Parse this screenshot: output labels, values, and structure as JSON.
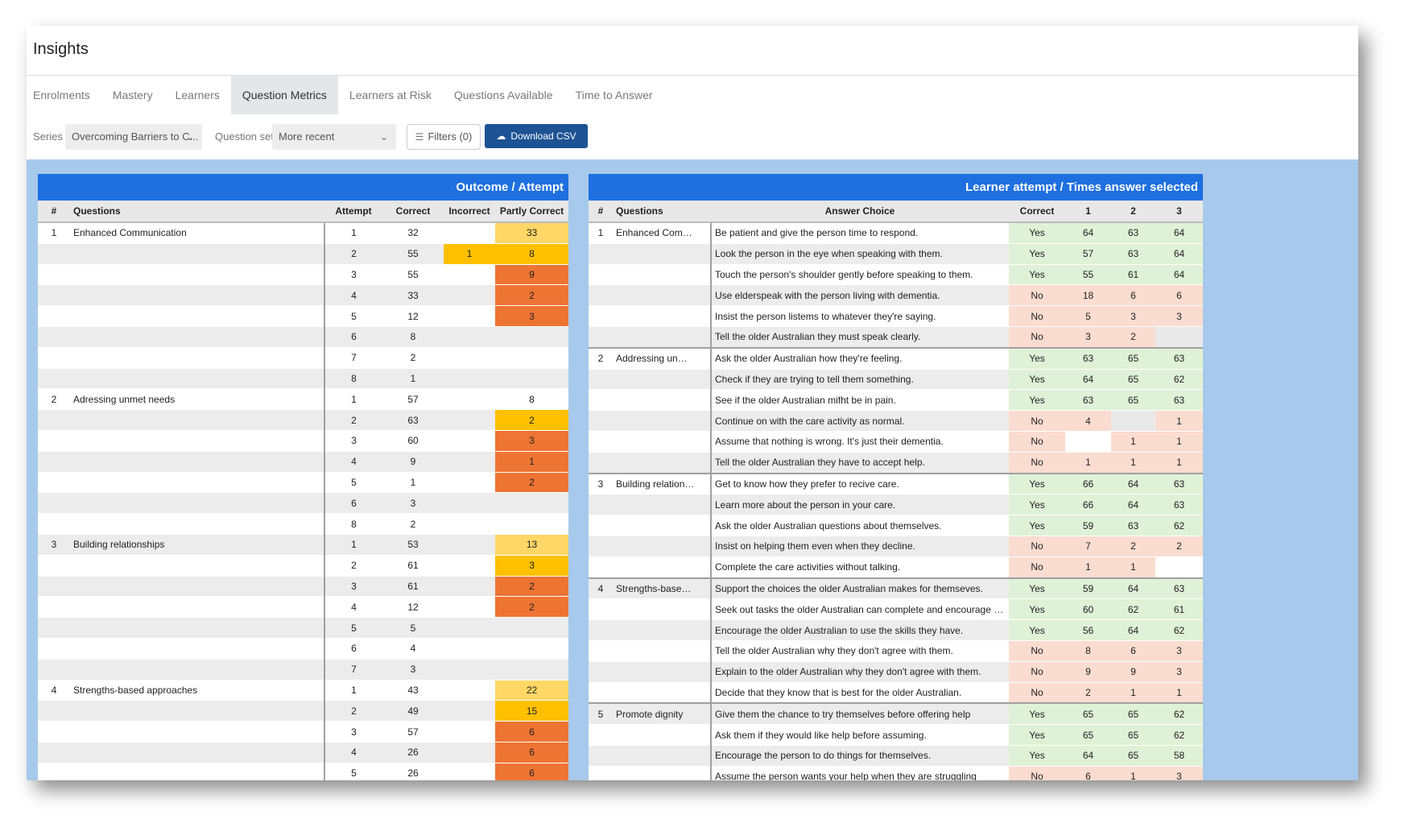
{
  "app": {
    "title": "Insights"
  },
  "tabs": [
    {
      "label": "Enrolments"
    },
    {
      "label": "Mastery"
    },
    {
      "label": "Learners"
    },
    {
      "label": "Question Metrics",
      "active": true
    },
    {
      "label": "Learners at Risk"
    },
    {
      "label": "Questions Available"
    },
    {
      "label": "Time to Answer"
    }
  ],
  "toolbar": {
    "series_label": "Series",
    "series_value": "Overcoming Barriers to C...",
    "qset_label": "Question set",
    "qset_value": "More recent",
    "filters_label": "Filters (0)",
    "download_label": "Download CSV"
  },
  "colors": {
    "banner": "#1e6fe0",
    "light_yellow": "#ffd766",
    "yellow": "#ffc000",
    "orange": "#ee7433",
    "green": "#dff1d6",
    "pink": "#fbdcd0",
    "panel_bg": "#a7c9eb"
  },
  "left_table": {
    "title": "Outcome / Attempt",
    "headers": [
      "#",
      "Questions",
      "Attempt",
      "Correct",
      "Incorrect",
      "Partly Correct"
    ],
    "rows": [
      {
        "num": "1",
        "q": "Enhanced Communication",
        "attempt": "1",
        "correct": "32",
        "incorrect": "",
        "partly": "33",
        "inc_c": "",
        "part_c": "y1"
      },
      {
        "num": "",
        "q": "",
        "attempt": "2",
        "correct": "55",
        "incorrect": "1",
        "partly": "8",
        "inc_c": "y2",
        "part_c": "y2"
      },
      {
        "num": "",
        "q": "",
        "attempt": "3",
        "correct": "55",
        "incorrect": "",
        "partly": "9",
        "inc_c": "",
        "part_c": "or"
      },
      {
        "num": "",
        "q": "",
        "attempt": "4",
        "correct": "33",
        "incorrect": "",
        "partly": "2",
        "inc_c": "",
        "part_c": "or"
      },
      {
        "num": "",
        "q": "",
        "attempt": "5",
        "correct": "12",
        "incorrect": "",
        "partly": "3",
        "inc_c": "",
        "part_c": "or"
      },
      {
        "num": "",
        "q": "",
        "attempt": "6",
        "correct": "8",
        "incorrect": "",
        "partly": "",
        "inc_c": "",
        "part_c": ""
      },
      {
        "num": "",
        "q": "",
        "attempt": "7",
        "correct": "2",
        "incorrect": "",
        "partly": "",
        "inc_c": "",
        "part_c": ""
      },
      {
        "num": "",
        "q": "",
        "attempt": "8",
        "correct": "1",
        "incorrect": "",
        "partly": "",
        "inc_c": "",
        "part_c": ""
      },
      {
        "num": "2",
        "q": "Adressing unmet needs",
        "attempt": "1",
        "correct": "57",
        "incorrect": "",
        "partly": "8",
        "inc_c": "",
        "part_c": ""
      },
      {
        "num": "",
        "q": "",
        "attempt": "2",
        "correct": "63",
        "incorrect": "",
        "partly": "2",
        "inc_c": "",
        "part_c": "y2"
      },
      {
        "num": "",
        "q": "",
        "attempt": "3",
        "correct": "60",
        "incorrect": "",
        "partly": "3",
        "inc_c": "",
        "part_c": "or"
      },
      {
        "num": "",
        "q": "",
        "attempt": "4",
        "correct": "9",
        "incorrect": "",
        "partly": "1",
        "inc_c": "",
        "part_c": "or"
      },
      {
        "num": "",
        "q": "",
        "attempt": "5",
        "correct": "1",
        "incorrect": "",
        "partly": "2",
        "inc_c": "",
        "part_c": "or"
      },
      {
        "num": "",
        "q": "",
        "attempt": "6",
        "correct": "3",
        "incorrect": "",
        "partly": "",
        "inc_c": "",
        "part_c": ""
      },
      {
        "num": "",
        "q": "",
        "attempt": "8",
        "correct": "2",
        "incorrect": "",
        "partly": "",
        "inc_c": "",
        "part_c": ""
      },
      {
        "num": "3",
        "q": "Building relationships",
        "attempt": "1",
        "correct": "53",
        "incorrect": "",
        "partly": "13",
        "inc_c": "",
        "part_c": "y1"
      },
      {
        "num": "",
        "q": "",
        "attempt": "2",
        "correct": "61",
        "incorrect": "",
        "partly": "3",
        "inc_c": "",
        "part_c": "y2"
      },
      {
        "num": "",
        "q": "",
        "attempt": "3",
        "correct": "61",
        "incorrect": "",
        "partly": "2",
        "inc_c": "",
        "part_c": "or"
      },
      {
        "num": "",
        "q": "",
        "attempt": "4",
        "correct": "12",
        "incorrect": "",
        "partly": "2",
        "inc_c": "",
        "part_c": "or"
      },
      {
        "num": "",
        "q": "",
        "attempt": "5",
        "correct": "5",
        "incorrect": "",
        "partly": "",
        "inc_c": "",
        "part_c": ""
      },
      {
        "num": "",
        "q": "",
        "attempt": "6",
        "correct": "4",
        "incorrect": "",
        "partly": "",
        "inc_c": "",
        "part_c": ""
      },
      {
        "num": "",
        "q": "",
        "attempt": "7",
        "correct": "3",
        "incorrect": "",
        "partly": "",
        "inc_c": "",
        "part_c": ""
      },
      {
        "num": "4",
        "q": "Strengths-based approaches",
        "attempt": "1",
        "correct": "43",
        "incorrect": "",
        "partly": "22",
        "inc_c": "",
        "part_c": "y1"
      },
      {
        "num": "",
        "q": "",
        "attempt": "2",
        "correct": "49",
        "incorrect": "",
        "partly": "15",
        "inc_c": "",
        "part_c": "y2"
      },
      {
        "num": "",
        "q": "",
        "attempt": "3",
        "correct": "57",
        "incorrect": "",
        "partly": "6",
        "inc_c": "",
        "part_c": "or"
      },
      {
        "num": "",
        "q": "",
        "attempt": "4",
        "correct": "26",
        "incorrect": "",
        "partly": "6",
        "inc_c": "",
        "part_c": "or"
      },
      {
        "num": "",
        "q": "",
        "attempt": "5",
        "correct": "26",
        "incorrect": "",
        "partly": "6",
        "inc_c": "",
        "part_c": "or"
      }
    ]
  },
  "right_table": {
    "title": "Learner attempt / Times answer selected",
    "headers": [
      "#",
      "Questions",
      "",
      "Answer Choice",
      "Correct",
      "1",
      "2",
      "3"
    ],
    "rows": [
      {
        "num": "1",
        "q": "Enhanced Comm...",
        "ans": "Be patient and give the person time to respond.",
        "correct": "Yes",
        "a1": "64",
        "a2": "63",
        "a3": "64",
        "c1": "gr",
        "c2": "gr",
        "c3": "gr"
      },
      {
        "num": "",
        "q": "",
        "ans": "Look the person in the eye when speaking with them.",
        "correct": "Yes",
        "a1": "57",
        "a2": "63",
        "a3": "64",
        "c1": "gr",
        "c2": "gr",
        "c3": "gr"
      },
      {
        "num": "",
        "q": "",
        "ans": "Touch the person's shoulder gently before speaking to them.",
        "correct": "Yes",
        "a1": "55",
        "a2": "61",
        "a3": "64",
        "c1": "gr",
        "c2": "gr",
        "c3": "gr"
      },
      {
        "num": "",
        "q": "",
        "ans": "Use elderspeak with the person living with dementia.",
        "correct": "No",
        "a1": "18",
        "a2": "6",
        "a3": "6",
        "c1": "pk",
        "c2": "pk",
        "c3": "pk"
      },
      {
        "num": "",
        "q": "",
        "ans": "Insist the person listems to whatever they're saying.",
        "correct": "No",
        "a1": "5",
        "a2": "3",
        "a3": "3",
        "c1": "pk",
        "c2": "pk",
        "c3": "pk"
      },
      {
        "num": "",
        "q": "",
        "ans": "Tell the older Australian they must speak clearly.",
        "correct": "No",
        "a1": "3",
        "a2": "2",
        "a3": "",
        "c1": "pk",
        "c2": "pk",
        "c3": "gy"
      },
      {
        "num": "2",
        "q": "Addressing unmet...",
        "ans": "Ask the older Australian how they're feeling.",
        "correct": "Yes",
        "a1": "63",
        "a2": "65",
        "a3": "63",
        "c1": "gr",
        "c2": "gr",
        "c3": "gr",
        "grp": true
      },
      {
        "num": "",
        "q": "",
        "ans": "Check if they are trying to tell them something.",
        "correct": "Yes",
        "a1": "64",
        "a2": "65",
        "a3": "62",
        "c1": "gr",
        "c2": "gr",
        "c3": "gr"
      },
      {
        "num": "",
        "q": "",
        "ans": "See if the older Australian mifht be in pain.",
        "correct": "Yes",
        "a1": "63",
        "a2": "65",
        "a3": "63",
        "c1": "gr",
        "c2": "gr",
        "c3": "gr"
      },
      {
        "num": "",
        "q": "",
        "ans": "Continue on with the care activity as normal.",
        "correct": "No",
        "a1": "4",
        "a2": "",
        "a3": "1",
        "c1": "pk",
        "c2": "gy",
        "c3": "pk"
      },
      {
        "num": "",
        "q": "",
        "ans": "Assume that nothing is wrong. It's just their dementia.",
        "correct": "No",
        "a1": "",
        "a2": "1",
        "a3": "1",
        "c1": "wh",
        "c2": "pk",
        "c3": "pk"
      },
      {
        "num": "",
        "q": "",
        "ans": "Tell the older Australian they have to accept help.",
        "correct": "No",
        "a1": "1",
        "a2": "1",
        "a3": "1",
        "c1": "pk",
        "c2": "pk",
        "c3": "pk"
      },
      {
        "num": "3",
        "q": "Building relations...",
        "ans": "Get to know how they prefer to recive care.",
        "correct": "Yes",
        "a1": "66",
        "a2": "64",
        "a3": "63",
        "c1": "gr",
        "c2": "gr",
        "c3": "gr",
        "grp": true
      },
      {
        "num": "",
        "q": "",
        "ans": "Learn more about the person in your care.",
        "correct": "Yes",
        "a1": "66",
        "a2": "64",
        "a3": "63",
        "c1": "gr",
        "c2": "gr",
        "c3": "gr"
      },
      {
        "num": "",
        "q": "",
        "ans": "Ask the older Australian questions about themselves.",
        "correct": "Yes",
        "a1": "59",
        "a2": "63",
        "a3": "62",
        "c1": "gr",
        "c2": "gr",
        "c3": "gr"
      },
      {
        "num": "",
        "q": "",
        "ans": "Insist on helping them even when they decline.",
        "correct": "No",
        "a1": "7",
        "a2": "2",
        "a3": "2",
        "c1": "pk",
        "c2": "pk",
        "c3": "pk"
      },
      {
        "num": "",
        "q": "",
        "ans": "Complete the care activities without talking.",
        "correct": "No",
        "a1": "1",
        "a2": "1",
        "a3": "",
        "c1": "pk",
        "c2": "pk",
        "c3": "wh"
      },
      {
        "num": "4",
        "q": "Strengths-based a...",
        "ans": "Support the choices the older Australian makes for themseves.",
        "correct": "Yes",
        "a1": "59",
        "a2": "64",
        "a3": "63",
        "c1": "gr",
        "c2": "gr",
        "c3": "gr",
        "grp": true
      },
      {
        "num": "",
        "q": "",
        "ans": "Seek out tasks the older Australian can complete and encourage those.",
        "correct": "Yes",
        "a1": "60",
        "a2": "62",
        "a3": "61",
        "c1": "gr",
        "c2": "gr",
        "c3": "gr"
      },
      {
        "num": "",
        "q": "",
        "ans": "Encourage the older Australian to use the skills they have.",
        "correct": "Yes",
        "a1": "56",
        "a2": "64",
        "a3": "62",
        "c1": "gr",
        "c2": "gr",
        "c3": "gr"
      },
      {
        "num": "",
        "q": "",
        "ans": "Tell the older Australian why they don't agree with them.",
        "correct": "No",
        "a1": "8",
        "a2": "6",
        "a3": "3",
        "c1": "pk",
        "c2": "pk",
        "c3": "pk"
      },
      {
        "num": "",
        "q": "",
        "ans": "Explain to the older Australian why they don't agree with them.",
        "correct": "No",
        "a1": "9",
        "a2": "9",
        "a3": "3",
        "c1": "pk",
        "c2": "pk",
        "c3": "pk"
      },
      {
        "num": "",
        "q": "",
        "ans": "Decide that they know that is best for the older Australian.",
        "correct": "No",
        "a1": "2",
        "a2": "1",
        "a3": "1",
        "c1": "pk",
        "c2": "pk",
        "c3": "pk"
      },
      {
        "num": "5",
        "q": "Promote dignity",
        "ans": "Give them the chance to try themselves before offering help",
        "correct": "Yes",
        "a1": "65",
        "a2": "65",
        "a3": "62",
        "c1": "gr",
        "c2": "gr",
        "c3": "gr",
        "grp": true
      },
      {
        "num": "",
        "q": "",
        "ans": "Ask them if they would like help before assuming.",
        "correct": "Yes",
        "a1": "65",
        "a2": "65",
        "a3": "62",
        "c1": "gr",
        "c2": "gr",
        "c3": "gr"
      },
      {
        "num": "",
        "q": "",
        "ans": "Encourage the person to do things for themselves.",
        "correct": "Yes",
        "a1": "64",
        "a2": "65",
        "a3": "58",
        "c1": "gr",
        "c2": "gr",
        "c3": "gr"
      },
      {
        "num": "",
        "q": "",
        "ans": "Assume the person wants your help when they are struggling",
        "correct": "No",
        "a1": "6",
        "a2": "1",
        "a3": "3",
        "c1": "pk",
        "c2": "pk",
        "c3": "pk"
      }
    ]
  }
}
